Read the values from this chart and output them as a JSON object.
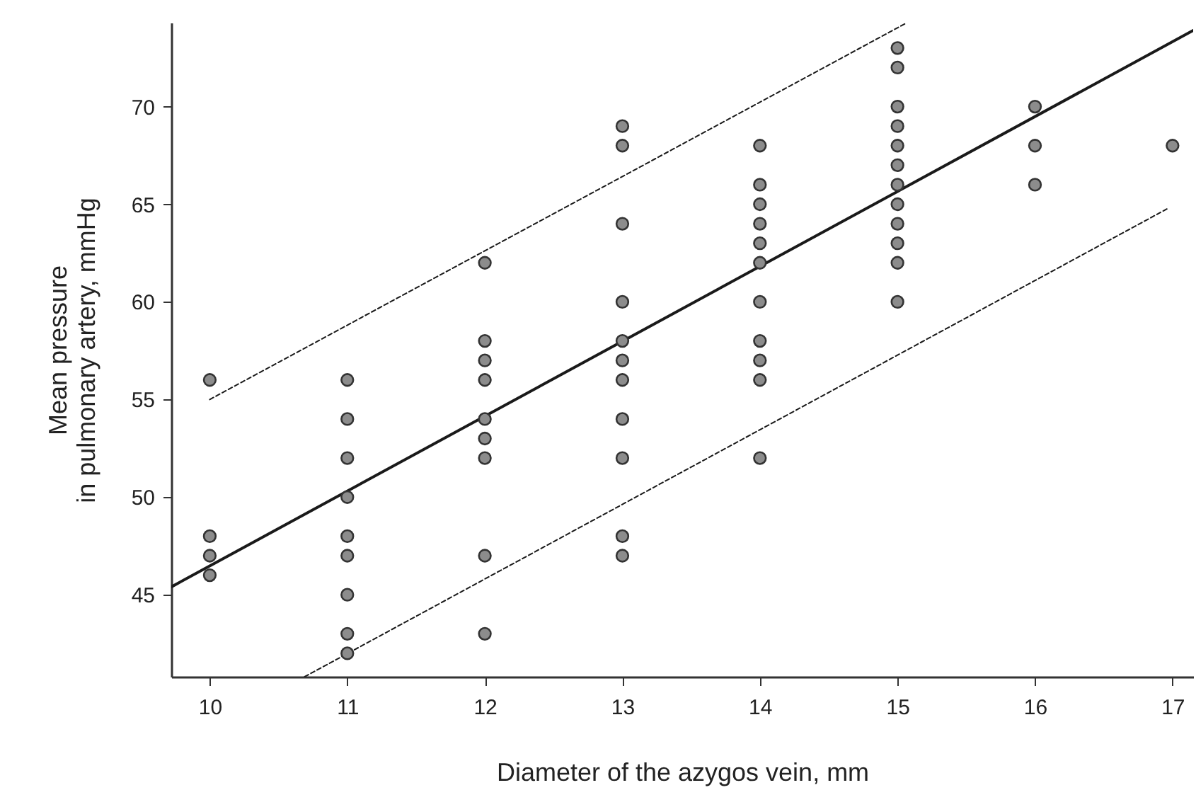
{
  "chart_data": {
    "type": "scatter",
    "xlabel": "Diameter of the azygos vein, mm",
    "ylabel": "Mean pressure\nin pulmonary artery, mmHg",
    "xlim": [
      9.72,
      17.15
    ],
    "ylim": [
      40.8,
      74.3
    ],
    "xticks": [
      10,
      11,
      12,
      13,
      14,
      15,
      16,
      17
    ],
    "yticks": [
      45,
      50,
      55,
      60,
      65,
      70
    ],
    "grid": false,
    "series": [
      {
        "color": "#8c8c8c",
        "marker": "circle",
        "x": [
          10,
          10,
          10,
          10,
          11,
          11,
          11,
          11,
          11,
          11,
          11,
          11,
          11,
          12,
          12,
          12,
          12,
          12,
          12,
          12,
          12,
          12,
          13,
          13,
          13,
          13,
          13,
          13,
          13,
          13,
          13,
          13,
          13,
          14,
          14,
          14,
          14,
          14,
          14,
          14,
          14,
          14,
          14,
          14,
          15,
          15,
          15,
          15,
          15,
          15,
          15,
          15,
          15,
          15,
          15,
          15,
          16,
          16,
          16,
          17
        ],
        "values": [
          56,
          48,
          47,
          46,
          56,
          54,
          52,
          50,
          48,
          47,
          45,
          43,
          42,
          62,
          58,
          57,
          56,
          54,
          53,
          52,
          47,
          43,
          69,
          68,
          64,
          60,
          58,
          57,
          56,
          54,
          52,
          48,
          47,
          68,
          66,
          65,
          64,
          63,
          62,
          60,
          58,
          57,
          56,
          52,
          73,
          72,
          70,
          69,
          68,
          67,
          66,
          65,
          64,
          63,
          62,
          60,
          70,
          68,
          66,
          68
        ]
      },
      {
        "type": "line",
        "color": "#1a1a1a",
        "line_style": "solid",
        "marker": "none",
        "x": [
          9.72,
          17.15
        ],
        "values": [
          45.4,
          73.9
        ]
      },
      {
        "type": "line",
        "color": "#1a1a1a",
        "line_style": "dashed",
        "marker": "none",
        "x": [
          10,
          15.07
        ],
        "values": [
          55,
          74.3
        ]
      },
      {
        "type": "line",
        "color": "#1a1a1a",
        "line_style": "dashed",
        "marker": "none",
        "x": [
          10.69,
          16.97
        ],
        "values": [
          40.8,
          64.8
        ]
      }
    ]
  }
}
